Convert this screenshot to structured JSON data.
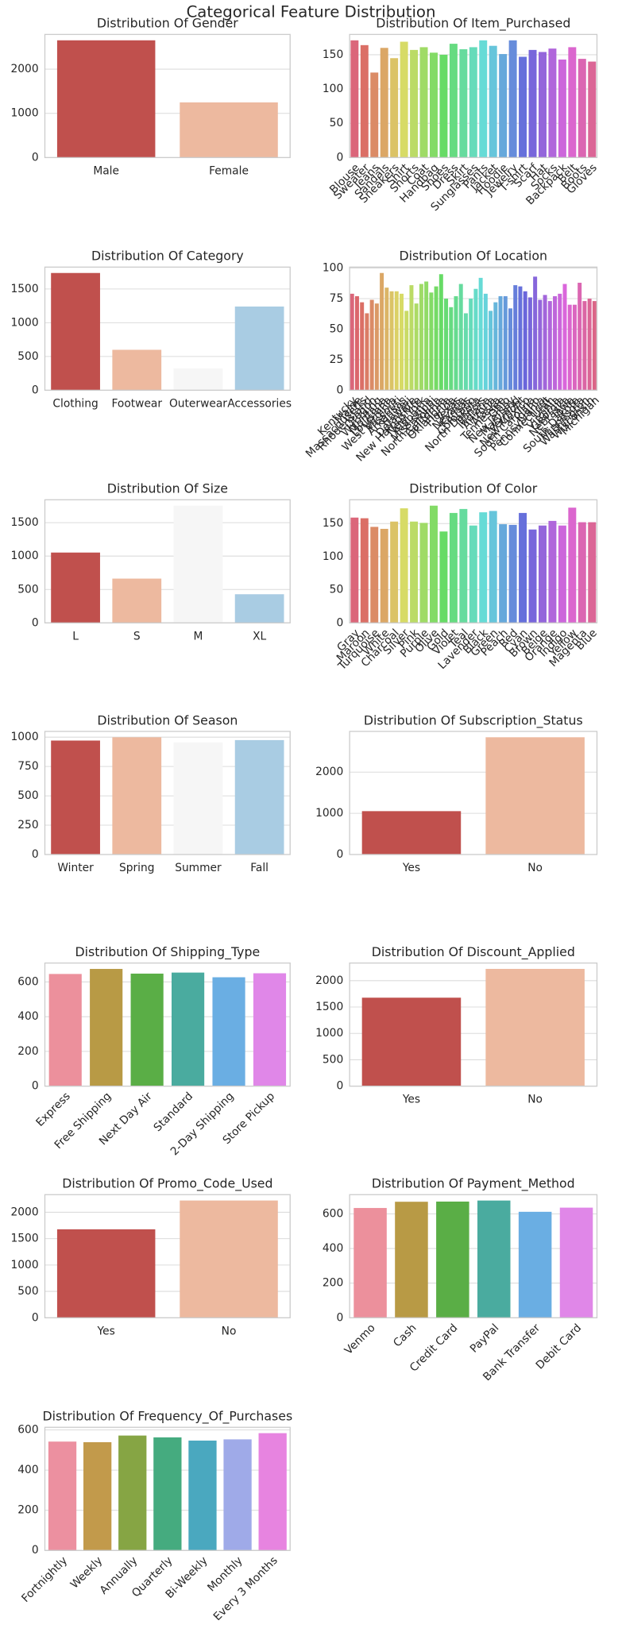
{
  "suptitle": "Categorical Feature Distribution",
  "chart_data": [
    {
      "type": "bar",
      "title": "Distribution Of Gender",
      "categories": [
        "Male",
        "Female"
      ],
      "values": [
        2652,
        1248
      ],
      "colors": [
        "#c0504d",
        "#edb99f"
      ],
      "ylim": [
        0,
        2785
      ],
      "yticks": [
        0,
        1000,
        2000
      ],
      "grid": true
    },
    {
      "type": "bar",
      "title": "Distribution Of Item_Purchased",
      "categories": [
        "Blouse",
        "Sweater",
        "Jeans",
        "Sandals",
        "Sneakers",
        "Shirt",
        "Shorts",
        "Coat",
        "Handbag",
        "Shoes",
        "Dress",
        "Skirt",
        "Sunglasses",
        "Pants",
        "Jacket",
        "Hoodie",
        "Jewelry",
        "T-shirt",
        "Scarf",
        "Hat",
        "Socks",
        "Backpack",
        "Belt",
        "Boots",
        "Gloves"
      ],
      "values": [
        171,
        164,
        124,
        160,
        145,
        169,
        157,
        161,
        153,
        150,
        166,
        158,
        161,
        171,
        163,
        151,
        171,
        147,
        157,
        154,
        159,
        143,
        161,
        144,
        140
      ],
      "palette": "husl",
      "xtick_rotation": 45,
      "ylim": [
        0,
        179.6
      ],
      "yticks": [
        0,
        50,
        100,
        150
      ],
      "grid": true
    },
    {
      "type": "bar",
      "title": "Distribution Of Category",
      "categories": [
        "Clothing",
        "Footwear",
        "Outerwear",
        "Accessories"
      ],
      "values": [
        1737,
        599,
        324,
        1240
      ],
      "colors": [
        "#c0504d",
        "#edb99f",
        "#f6f6f6",
        "#a9cce3"
      ],
      "ylim": [
        0,
        1824
      ],
      "yticks": [
        0,
        500,
        1000,
        1500
      ],
      "grid": true
    },
    {
      "type": "bar",
      "title": "Distribution Of Location",
      "categories": [
        "Kentucky",
        "Maine",
        "Massachusetts",
        "Rhode Island",
        "Oregon",
        "Wyoming",
        "Montana",
        "Louisiana",
        "West Virginia",
        "Missouri",
        "Arkansas",
        "Hawaii",
        "Delaware",
        "New Hampshire",
        "New York",
        "Alabama",
        "Mississippi",
        "North Carolina",
        "California",
        "Oklahoma",
        "Florida",
        "Texas",
        "Nevada",
        "Kansas",
        "Colorado",
        "North Dakota",
        "Illinois",
        "Indiana",
        "Arizona",
        "Alaska",
        "Tennessee",
        "Ohio",
        "New Jersey",
        "Maryland",
        "Vermont",
        "New Mexico",
        "South Carolina",
        "Idaho",
        "Pennsylvania",
        "Connecticut",
        "Utah",
        "Virginia",
        "Georgia",
        "Nebraska",
        "Iowa",
        "South Dakota",
        "Minnesota",
        "Washington",
        "Wisconsin",
        "Michigan"
      ],
      "values": [
        79,
        77,
        72,
        63,
        74,
        71,
        96,
        84,
        81,
        81,
        79,
        65,
        86,
        71,
        87,
        89,
        80,
        85,
        95,
        75,
        68,
        77,
        87,
        63,
        75,
        83,
        92,
        79,
        65,
        72,
        77,
        77,
        67,
        86,
        85,
        81,
        76,
        93,
        74,
        78,
        73,
        77,
        79,
        87,
        70,
        70,
        88,
        73,
        75,
        73
      ],
      "palette": "husl",
      "xtick_rotation": 45,
      "ylim": [
        0,
        100.8
      ],
      "yticks": [
        0,
        25,
        50,
        75,
        100
      ],
      "grid": true
    },
    {
      "type": "bar",
      "title": "Distribution Of Size",
      "categories": [
        "L",
        "S",
        "M",
        "XL"
      ],
      "values": [
        1053,
        663,
        1755,
        429
      ],
      "colors": [
        "#c0504d",
        "#edb99f",
        "#f6f6f6",
        "#a9cce3"
      ],
      "ylim": [
        0,
        1843
      ],
      "yticks": [
        0,
        500,
        1000,
        1500
      ],
      "grid": true
    },
    {
      "type": "bar",
      "title": "Distribution Of Color",
      "categories": [
        "Gray",
        "Maroon",
        "Turquoise",
        "White",
        "Charcoal",
        "Silver",
        "Pink",
        "Purple",
        "Olive",
        "Gold",
        "Violet",
        "Teal",
        "Lavender",
        "Black",
        "Green",
        "Peach",
        "Red",
        "Cyan",
        "Brown",
        "Beige",
        "Orange",
        "Indigo",
        "Yellow",
        "Magenta",
        "Blue"
      ],
      "values": [
        159,
        158,
        145,
        142,
        153,
        173,
        153,
        151,
        177,
        138,
        166,
        172,
        147,
        167,
        169,
        149,
        148,
        166,
        141,
        147,
        154,
        147,
        174,
        152,
        152
      ],
      "palette": "husl",
      "xtick_rotation": 45,
      "ylim": [
        0,
        185.9
      ],
      "yticks": [
        0,
        50,
        100,
        150
      ],
      "grid": true
    },
    {
      "type": "bar",
      "title": "Distribution Of Season",
      "categories": [
        "Winter",
        "Spring",
        "Summer",
        "Fall"
      ],
      "values": [
        971,
        999,
        955,
        975
      ],
      "colors": [
        "#c0504d",
        "#edb99f",
        "#f6f6f6",
        "#a9cce3"
      ],
      "ylim": [
        0,
        1049
      ],
      "yticks": [
        0,
        250,
        500,
        750,
        1000
      ],
      "grid": true
    },
    {
      "type": "bar",
      "title": "Distribution Of Subscription_Status",
      "categories": [
        "Yes",
        "No"
      ],
      "values": [
        1053,
        2847
      ],
      "colors": [
        "#c0504d",
        "#edb99f"
      ],
      "ylim": [
        0,
        2989
      ],
      "yticks": [
        0,
        1000,
        2000
      ],
      "grid": true
    },
    {
      "type": "bar",
      "title": "Distribution Of Shipping_Type",
      "categories": [
        "Express",
        "Free Shipping",
        "Next Day Air",
        "Standard",
        "2-Day Shipping",
        "Store Pickup"
      ],
      "values": [
        646,
        675,
        648,
        654,
        627,
        650
      ],
      "colors": [
        "#ec909c",
        "#b89a45",
        "#5aae46",
        "#4aab9f",
        "#6aaee3",
        "#e087e8"
      ],
      "xtick_rotation": 45,
      "ylim": [
        0,
        709
      ],
      "yticks": [
        0,
        200,
        400,
        600
      ],
      "grid": true
    },
    {
      "type": "bar",
      "title": "Distribution Of Discount_Applied",
      "categories": [
        "Yes",
        "No"
      ],
      "values": [
        1677,
        2223
      ],
      "colors": [
        "#c0504d",
        "#edb99f"
      ],
      "ylim": [
        0,
        2334
      ],
      "yticks": [
        0,
        500,
        1000,
        1500,
        2000
      ],
      "grid": true
    },
    {
      "type": "bar",
      "title": "Distribution Of Promo_Code_Used",
      "categories": [
        "Yes",
        "No"
      ],
      "values": [
        1677,
        2223
      ],
      "colors": [
        "#c0504d",
        "#edb99f"
      ],
      "ylim": [
        0,
        2334
      ],
      "yticks": [
        0,
        500,
        1000,
        1500,
        2000
      ],
      "grid": true
    },
    {
      "type": "bar",
      "title": "Distribution Of Payment_Method",
      "categories": [
        "Venmo",
        "Cash",
        "Credit Card",
        "PayPal",
        "Bank Transfer",
        "Debit Card"
      ],
      "values": [
        634,
        670,
        671,
        677,
        612,
        636
      ],
      "colors": [
        "#ec909c",
        "#b89a45",
        "#5aae46",
        "#4aab9f",
        "#6aaee3",
        "#e087e8"
      ],
      "xtick_rotation": 45,
      "ylim": [
        0,
        711
      ],
      "yticks": [
        0,
        200,
        400,
        600
      ],
      "grid": true
    },
    {
      "type": "bar",
      "title": "Distribution Of Frequency_Of_Purchases",
      "categories": [
        "Fortnightly",
        "Weekly",
        "Annually",
        "Quarterly",
        "Bi-Weekly",
        "Monthly",
        "Every 3 Months"
      ],
      "values": [
        542,
        539,
        572,
        563,
        547,
        553,
        584
      ],
      "colors": [
        "#ec90a0",
        "#c29a4b",
        "#86a544",
        "#45ab7f",
        "#4aa8bf",
        "#9faae8",
        "#e784e0"
      ],
      "xtick_rotation": 45,
      "ylim": [
        0,
        613
      ],
      "yticks": [
        0,
        200,
        400,
        600
      ],
      "grid": true
    }
  ]
}
